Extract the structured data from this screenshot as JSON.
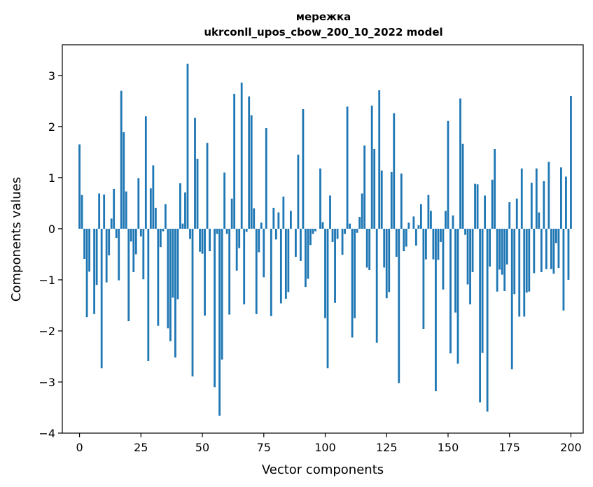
{
  "chart_data": {
    "type": "bar",
    "title_line1": "мережка",
    "title_line2": "ukrconll_upos_cbow_200_10_2022 model",
    "xlabel": "Vector components",
    "ylabel": "Components values",
    "xlim": [
      -7,
      205
    ],
    "ylim": [
      -4,
      3.6
    ],
    "xticks": [
      0,
      25,
      50,
      75,
      100,
      125,
      150,
      175,
      200
    ],
    "xtick_labels": [
      "0",
      "25",
      "50",
      "75",
      "100",
      "125",
      "150",
      "175",
      "200"
    ],
    "yticks": [
      -4,
      -3,
      -2,
      -1,
      0,
      1,
      2,
      3
    ],
    "ytick_labels": [
      "−4",
      "−3",
      "−2",
      "−1",
      "0",
      "1",
      "2",
      "3"
    ],
    "bar_color": "#1f77b4",
    "grid": false,
    "values": [
      1.65,
      0.66,
      -0.59,
      -1.73,
      -0.84,
      0.0,
      -1.67,
      -1.1,
      0.69,
      -2.73,
      0.67,
      -1.05,
      -0.52,
      0.2,
      0.78,
      -0.18,
      -1.01,
      2.7,
      1.89,
      0.73,
      -1.81,
      -0.25,
      -0.85,
      -0.5,
      0.99,
      -0.15,
      -0.99,
      2.2,
      -2.59,
      0.79,
      1.24,
      0.41,
      -1.9,
      -0.36,
      -0.05,
      0.48,
      -1.95,
      -2.2,
      -1.35,
      -2.52,
      -1.38,
      0.89,
      0.1,
      0.71,
      3.23,
      -0.2,
      -2.89,
      2.17,
      1.37,
      -0.45,
      -0.49,
      -1.7,
      1.68,
      -0.44,
      0.0,
      -3.1,
      -0.1,
      -3.66,
      -2.56,
      1.1,
      -0.1,
      -1.68,
      0.59,
      2.64,
      -0.82,
      -0.38,
      2.86,
      -1.48,
      -0.06,
      2.59,
      2.22,
      0.4,
      -1.67,
      -0.46,
      0.12,
      -0.95,
      1.97,
      0.0,
      -1.71,
      0.41,
      -0.21,
      0.32,
      -1.46,
      0.63,
      -1.37,
      -1.24,
      0.35,
      0.0,
      -0.55,
      1.45,
      -0.63,
      2.34,
      -1.14,
      -0.98,
      -0.32,
      -0.1,
      -0.05,
      0.0,
      1.18,
      0.13,
      -1.75,
      -2.73,
      0.65,
      -0.26,
      -1.45,
      -0.2,
      0.0,
      -0.51,
      -0.1,
      2.39,
      0.1,
      -2.13,
      -1.75,
      -0.08,
      0.23,
      0.69,
      1.63,
      -0.76,
      -0.81,
      2.41,
      1.56,
      -2.23,
      2.71,
      1.14,
      -0.76,
      -1.36,
      -1.24,
      1.11,
      2.26,
      -0.55,
      -3.02,
      1.08,
      -0.44,
      -0.35,
      0.12,
      0.0,
      0.24,
      -0.33,
      0.07,
      0.48,
      -1.96,
      -0.6,
      0.66,
      0.35,
      -0.6,
      -3.18,
      -0.61,
      -0.26,
      -1.19,
      0.35,
      2.11,
      -2.44,
      0.26,
      -1.64,
      -2.64,
      2.55,
      1.66,
      -0.12,
      -1.09,
      -1.48,
      -0.85,
      0.88,
      0.87,
      -3.4,
      -2.43,
      0.65,
      -3.58,
      -0.74,
      0.96,
      1.56,
      -1.23,
      -0.8,
      -0.9,
      -1.22,
      -0.7,
      0.52,
      -2.75,
      -1.28,
      0.59,
      -1.72,
      1.18,
      -1.72,
      -1.25,
      -1.23,
      0.9,
      -0.87,
      1.18,
      0.32,
      -0.85,
      0.93,
      -0.79,
      1.31,
      -0.79,
      -0.88,
      -0.28,
      -0.77,
      1.2,
      -1.6,
      1.02,
      -1.0,
      2.6
    ]
  }
}
